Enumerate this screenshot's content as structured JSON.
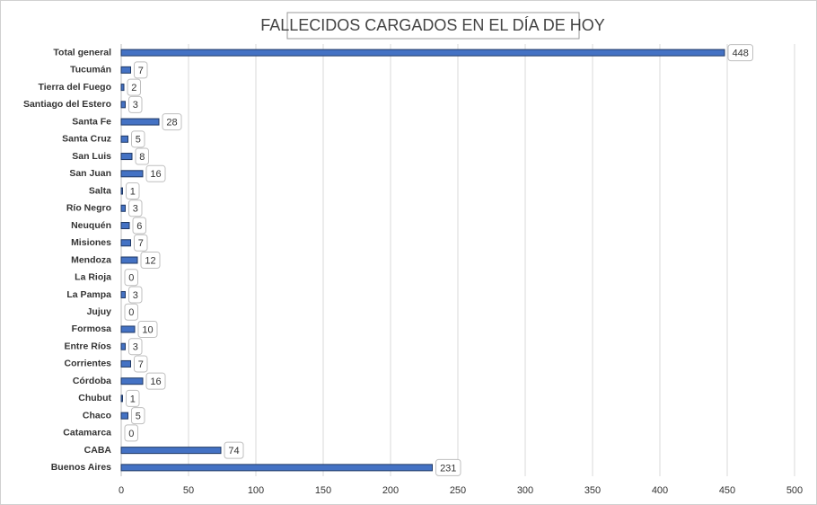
{
  "chart_data": {
    "type": "bar",
    "orientation": "horizontal",
    "title": "FALLECIDOS CARGADOS EN EL DÍA DE HOY",
    "categories": [
      "Total general",
      "Tucumán",
      "Tierra del Fuego",
      "Santiago del Estero",
      "Santa Fe",
      "Santa Cruz",
      "San Luis",
      "San Juan",
      "Salta",
      "Río Negro",
      "Neuquén",
      "Misiones",
      "Mendoza",
      "La Rioja",
      "La Pampa",
      "Jujuy",
      "Formosa",
      "Entre Ríos",
      "Corrientes",
      "Córdoba",
      "Chubut",
      "Chaco",
      "Catamarca",
      "CABA",
      "Buenos Aires"
    ],
    "values": [
      448,
      7,
      2,
      3,
      28,
      5,
      8,
      16,
      1,
      3,
      6,
      7,
      12,
      0,
      3,
      0,
      10,
      3,
      7,
      16,
      1,
      5,
      0,
      74,
      231
    ],
    "color": "#4472c4",
    "xlim": [
      0,
      500
    ],
    "xticks": [
      0,
      50,
      100,
      150,
      200,
      250,
      300,
      350,
      400,
      450,
      500
    ],
    "grid": true
  }
}
